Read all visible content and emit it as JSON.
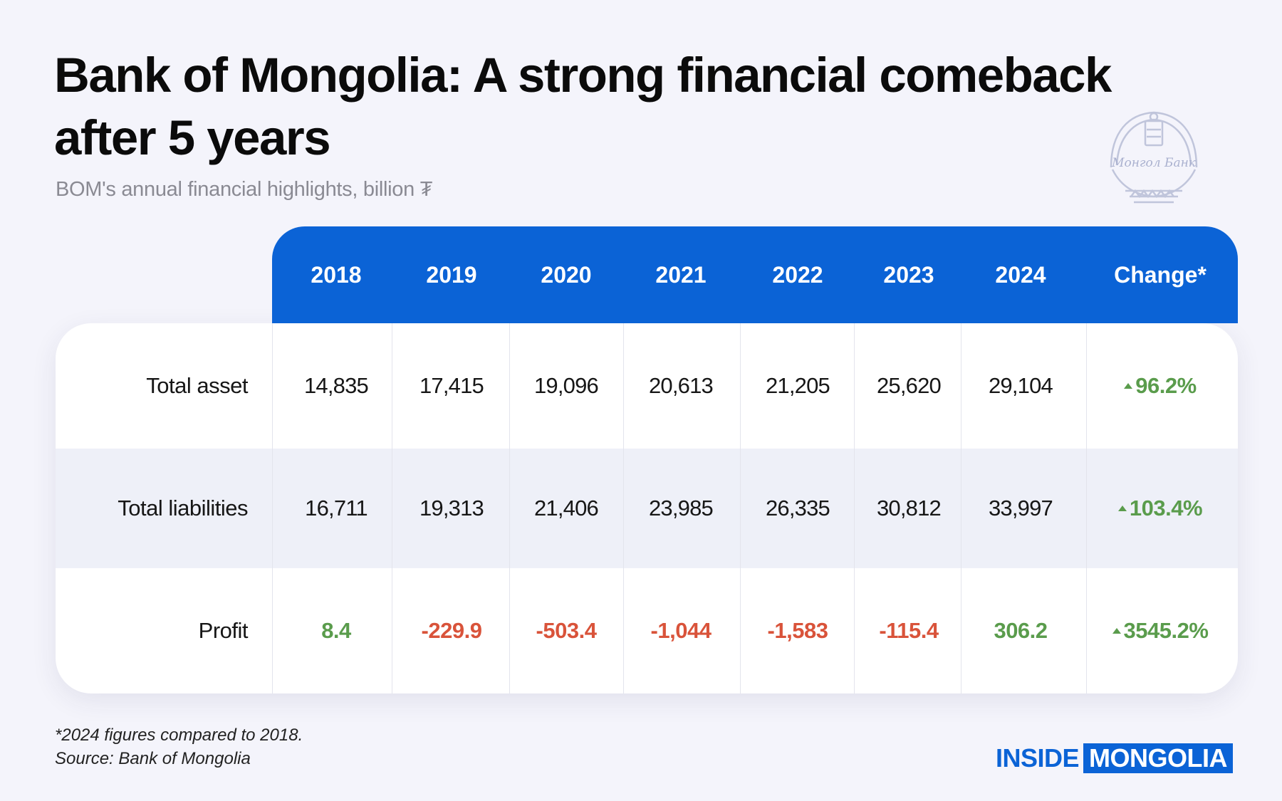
{
  "title": "Bank of Mongolia: A strong financial comeback after 5 years",
  "subtitle": "BOM's annual financial highlights, billion ₮",
  "logo": {
    "text": "Монгол Банк",
    "icon": "bank-of-mongolia-seal"
  },
  "colors": {
    "header_blue": "#0b63d6",
    "positive_green": "#5a9c4c",
    "negative_red": "#d9533a",
    "background": "#f4f4fb"
  },
  "chart_data": {
    "type": "table",
    "title": "Bank of Mongolia: A strong financial comeback after 5 years",
    "subtitle": "BOM's annual financial highlights, billion ₮",
    "columns": [
      "2018",
      "2019",
      "2020",
      "2021",
      "2022",
      "2023",
      "2024",
      "Change*"
    ],
    "rows": [
      {
        "label": "Total asset",
        "values": [
          "14,835",
          "17,415",
          "19,096",
          "20,613",
          "21,205",
          "25,620",
          "29,104"
        ],
        "numeric": [
          14835,
          17415,
          19096,
          20613,
          21205,
          25620,
          29104
        ],
        "change": "96.2%"
      },
      {
        "label": "Total liabilities",
        "values": [
          "16,711",
          "19,313",
          "21,406",
          "23,985",
          "26,335",
          "30,812",
          "33,997"
        ],
        "numeric": [
          16711,
          19313,
          21406,
          23985,
          26335,
          30812,
          33997
        ],
        "change": "103.4%"
      },
      {
        "label": "Profit",
        "values": [
          "8.4",
          "-229.9",
          "-503.4",
          "-1,044",
          "-1,583",
          "-115.4",
          "306.2"
        ],
        "numeric": [
          8.4,
          -229.9,
          -503.4,
          -1044,
          -1583,
          -115.4,
          306.2
        ],
        "change": "3545.2%"
      }
    ]
  },
  "footnote": {
    "note": "*2024 figures compared to 2018.",
    "source": "Source: Bank of Mongolia"
  },
  "brand": {
    "part1": "INSIDE",
    "part2": "MONGOLIA"
  }
}
